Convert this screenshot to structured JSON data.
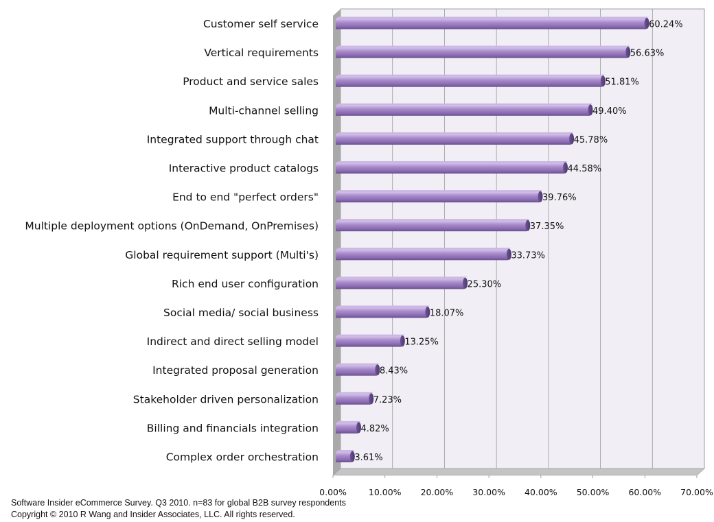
{
  "chart_data": {
    "type": "bar",
    "orientation": "horizontal",
    "categories": [
      "Customer self service",
      "Vertical requirements",
      "Product and service sales",
      "Multi-channel selling",
      "Integrated support through chat",
      "Interactive product catalogs",
      "End to end \"perfect orders\"",
      "Multiple deployment options (OnDemand, OnPremises)",
      "Global requirement support (Multi's)",
      "Rich end user configuration",
      "Social media/ social business",
      "Indirect and direct selling model",
      "Integrated proposal generation",
      "Stakeholder driven personalization",
      "Billing and financials integration",
      "Complex order orchestration"
    ],
    "values": [
      60.24,
      56.63,
      51.81,
      49.4,
      45.78,
      44.58,
      39.76,
      37.35,
      33.73,
      25.3,
      18.07,
      13.25,
      8.43,
      7.23,
      4.82,
      3.61
    ],
    "value_labels": [
      "60.24%",
      "56.63%",
      "51.81%",
      "49.40%",
      "45.78%",
      "44.58%",
      "39.76%",
      "37.35%",
      "33.73%",
      "25.30%",
      "18.07%",
      "13.25%",
      "8.43%",
      "7.23%",
      "4.82%",
      "3.61%"
    ],
    "x_ticks": [
      "0.00%",
      "10.00%",
      "20.00%",
      "30.00%",
      "40.00%",
      "50.00%",
      "60.00%",
      "70.00%"
    ],
    "xlim": [
      0,
      70
    ],
    "grid": true,
    "colors": {
      "bar_main": "#9a7cc0",
      "bar_light": "#cbb6e4",
      "bar_dark": "#5e4582",
      "plot_bg": "#f1eff5",
      "wall": "#a9a9a9",
      "floor": "#c4c4c4",
      "gridline": "#9a9a9a"
    }
  },
  "footnotes": {
    "line1": "Software Insider eCommerce Survey. Q3 2010.  n=83 for global B2B survey respondents",
    "line2": "Copyright © 2010 R Wang and Insider Associates, LLC. All rights reserved."
  }
}
